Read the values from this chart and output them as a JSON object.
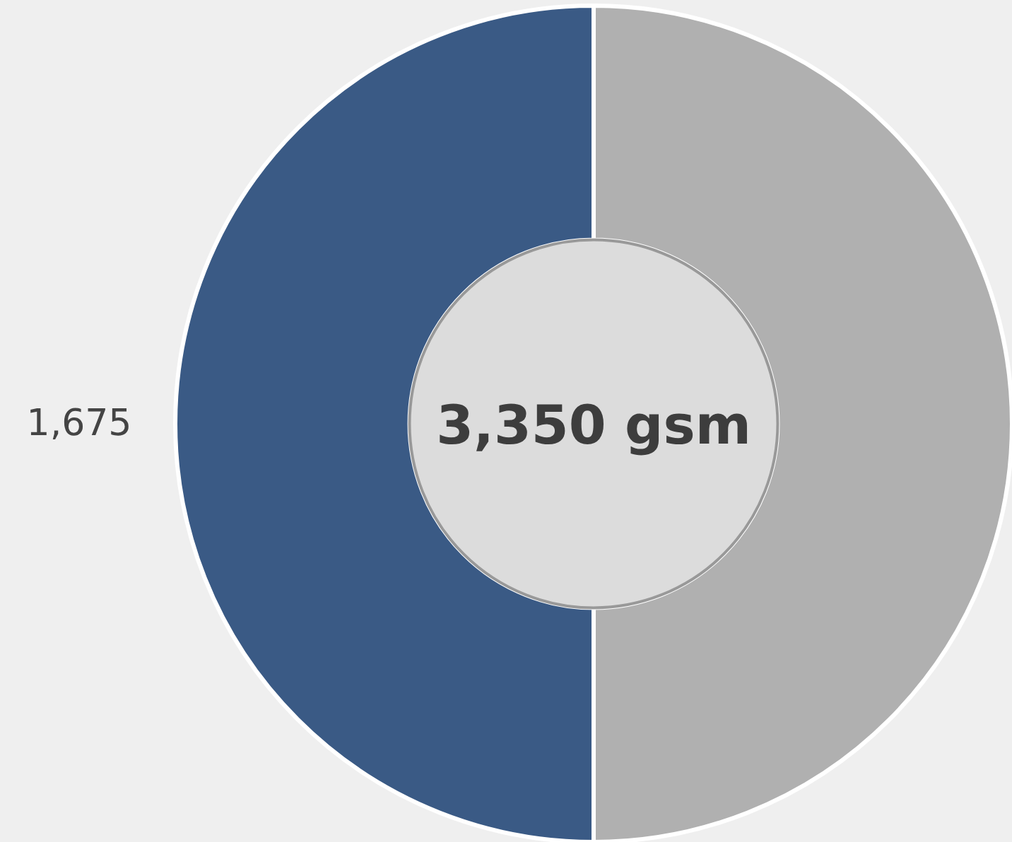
{
  "chart_data": {
    "type": "donut",
    "categories": [
      null,
      null
    ],
    "values": [
      1675,
      1675
    ],
    "colors": [
      "#b0b0b0",
      "#3a5a85"
    ],
    "value_labels": [
      null,
      "1,675"
    ],
    "annotations": [
      "3,350 gsm"
    ]
  }
}
